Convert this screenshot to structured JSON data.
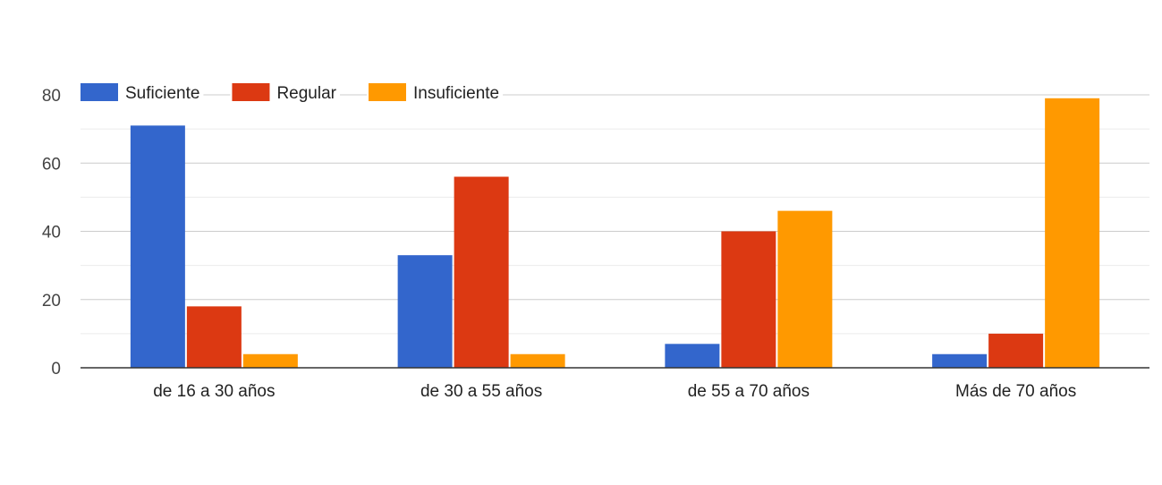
{
  "chart_data": {
    "type": "bar",
    "categories": [
      "de 16 a 30 años",
      "de 30 a 55 años",
      "de 55 a 70 años",
      "Más de 70 años"
    ],
    "series": [
      {
        "name": "Suficiente",
        "color": "#3366CC",
        "values": [
          71,
          33,
          7,
          4
        ]
      },
      {
        "name": "Regular",
        "color": "#DC3912",
        "values": [
          18,
          56,
          40,
          10
        ]
      },
      {
        "name": "Insuficiente",
        "color": "#FF9900",
        "values": [
          4,
          4,
          46,
          79
        ]
      }
    ],
    "ylim": [
      0,
      80
    ],
    "yticks": [
      0,
      20,
      40,
      60,
      80
    ],
    "title": "",
    "xlabel": "",
    "ylabel": "",
    "grid": true,
    "legend": "top-left"
  }
}
